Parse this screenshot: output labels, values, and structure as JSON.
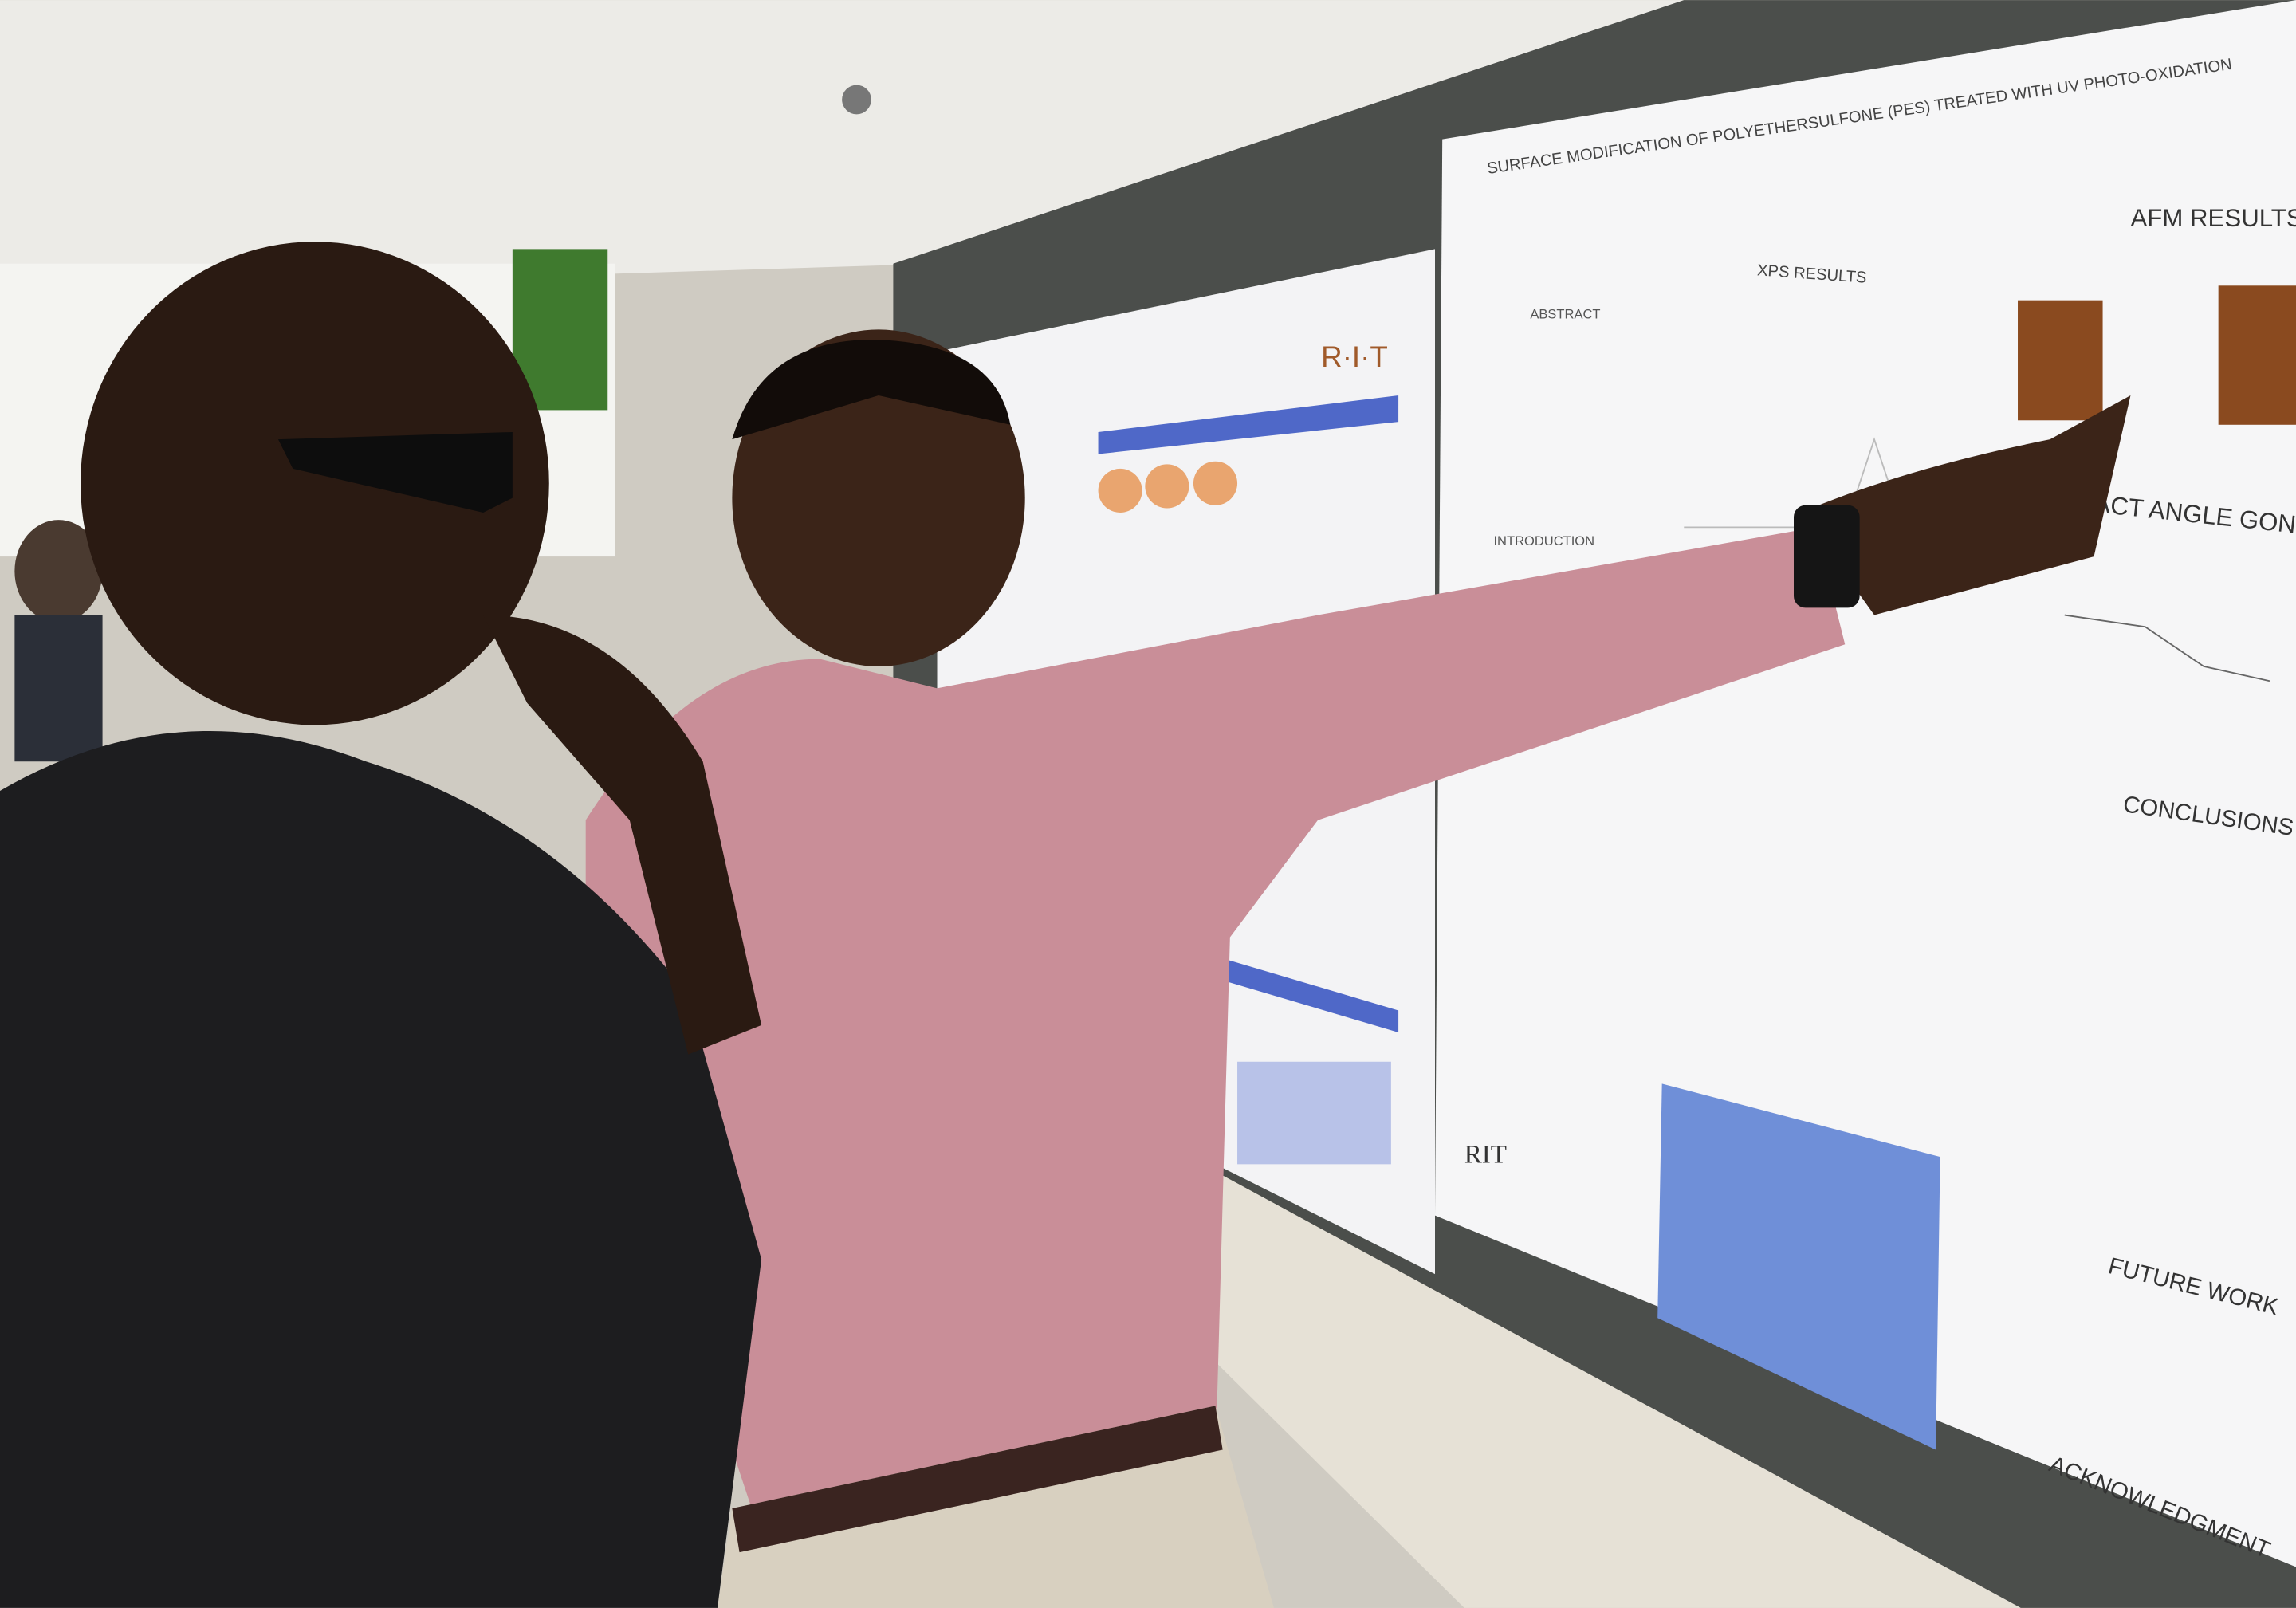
{
  "poster_main": {
    "title": "SURFACE MODIFICATION OF POLYETHERSULFONE (PES) TREATED WITH UV PHOTO-OXIDATION",
    "abstract": "ABSTRACT",
    "introduction": "INTRODUCTION",
    "xps": "XPS RESULTS",
    "afm": "AFM RESULTS",
    "contact_angle": "ACT ANGLE GONIO",
    "conclusions": "CONCLUSIONS",
    "future_work": "FUTURE WORK",
    "acknowledgment": "ACKNOWLEDGMENT",
    "logo": "RIT"
  },
  "poster_left": {
    "logo": "R·I·T"
  }
}
